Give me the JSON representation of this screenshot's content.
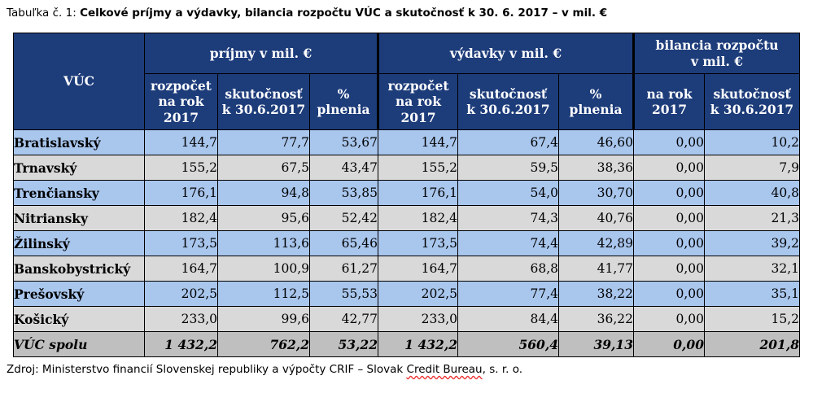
{
  "caption": {
    "prefix": "Tabuľka č. 1: ",
    "title": "Celkové príjmy a výdavky, bilancia rozpočtu VÚC a skutočnosť k 30. 6. 2017 – v mil. €"
  },
  "header": {
    "vuc": "VÚC",
    "prijmy": "príjmy  v mil. €",
    "vydavky": "výdavky  v mil. €",
    "bilancia_line1": "bilancia  rozpočtu",
    "bilancia_line2": "v mil.  €",
    "rozpocet_line1": "rozpočet",
    "rozpocet_line2": "na rok",
    "rozpocet_line3": "2017",
    "skutocnost_line1": "skutočnosť",
    "skutocnost_line2": "k 30.6.2017",
    "plnenia_line1": "%",
    "plnenia_line2": "plnenia",
    "narok_line1": "na rok",
    "narok_line2": "2017"
  },
  "rows": [
    {
      "name": "Bratislavský",
      "p_rozp": "144,7",
      "p_skut": "77,7",
      "p_pct": "53,67",
      "v_rozp": "144,7",
      "v_skut": "67,4",
      "v_pct": "46,60",
      "b_rok": "0,00",
      "b_skut": "10,2"
    },
    {
      "name": "Trnavský",
      "p_rozp": "155,2",
      "p_skut": "67,5",
      "p_pct": "43,47",
      "v_rozp": "155,2",
      "v_skut": "59,5",
      "v_pct": "38,36",
      "b_rok": "0,00",
      "b_skut": "7,9"
    },
    {
      "name": "Trenčiansky",
      "p_rozp": "176,1",
      "p_skut": "94,8",
      "p_pct": "53,85",
      "v_rozp": "176,1",
      "v_skut": "54,0",
      "v_pct": "30,70",
      "b_rok": "0,00",
      "b_skut": "40,8"
    },
    {
      "name": "Nitriansky",
      "p_rozp": "182,4",
      "p_skut": "95,6",
      "p_pct": "52,42",
      "v_rozp": "182,4",
      "v_skut": "74,3",
      "v_pct": "40,76",
      "b_rok": "0,00",
      "b_skut": "21,3"
    },
    {
      "name": "Žilinský",
      "p_rozp": "173,5",
      "p_skut": "113,6",
      "p_pct": "65,46",
      "v_rozp": "173,5",
      "v_skut": "74,4",
      "v_pct": "42,89",
      "b_rok": "0,00",
      "b_skut": "39,2"
    },
    {
      "name": "Banskobystrický",
      "p_rozp": "164,7",
      "p_skut": "100,9",
      "p_pct": "61,27",
      "v_rozp": "164,7",
      "v_skut": "68,8",
      "v_pct": "41,77",
      "b_rok": "0,00",
      "b_skut": "32,1"
    },
    {
      "name": "Prešovský",
      "p_rozp": "202,5",
      "p_skut": "112,5",
      "p_pct": "55,53",
      "v_rozp": "202,5",
      "v_skut": "77,4",
      "v_pct": "38,22",
      "b_rok": "0,00",
      "b_skut": "35,1"
    },
    {
      "name": "Košický",
      "p_rozp": "233,0",
      "p_skut": "99,6",
      "p_pct": "42,77",
      "v_rozp": "233,0",
      "v_skut": "84,4",
      "v_pct": "36,22",
      "b_rok": "0,00",
      "b_skut": "15,2"
    }
  ],
  "total": {
    "name": "VÚC spolu",
    "p_rozp": "1 432,2",
    "p_skut": "762,2",
    "p_pct": "53,22",
    "v_rozp": "1 432,2",
    "v_skut": "560,4",
    "v_pct": "39,13",
    "b_rok": "0,00",
    "b_skut": "201,8"
  },
  "source": {
    "prefix": "Zdroj: Ministerstvo financií Slovenskej republiky a výpočty CRIF – Slovak ",
    "squiggly": "Credit Bureau",
    "suffix": ", s. r. o."
  },
  "colors": {
    "header_bg": "#1d3c7a",
    "row_blue": "#a9c6ed",
    "row_gray": "#d9d9d9",
    "total_row": "#bfbfbf"
  }
}
